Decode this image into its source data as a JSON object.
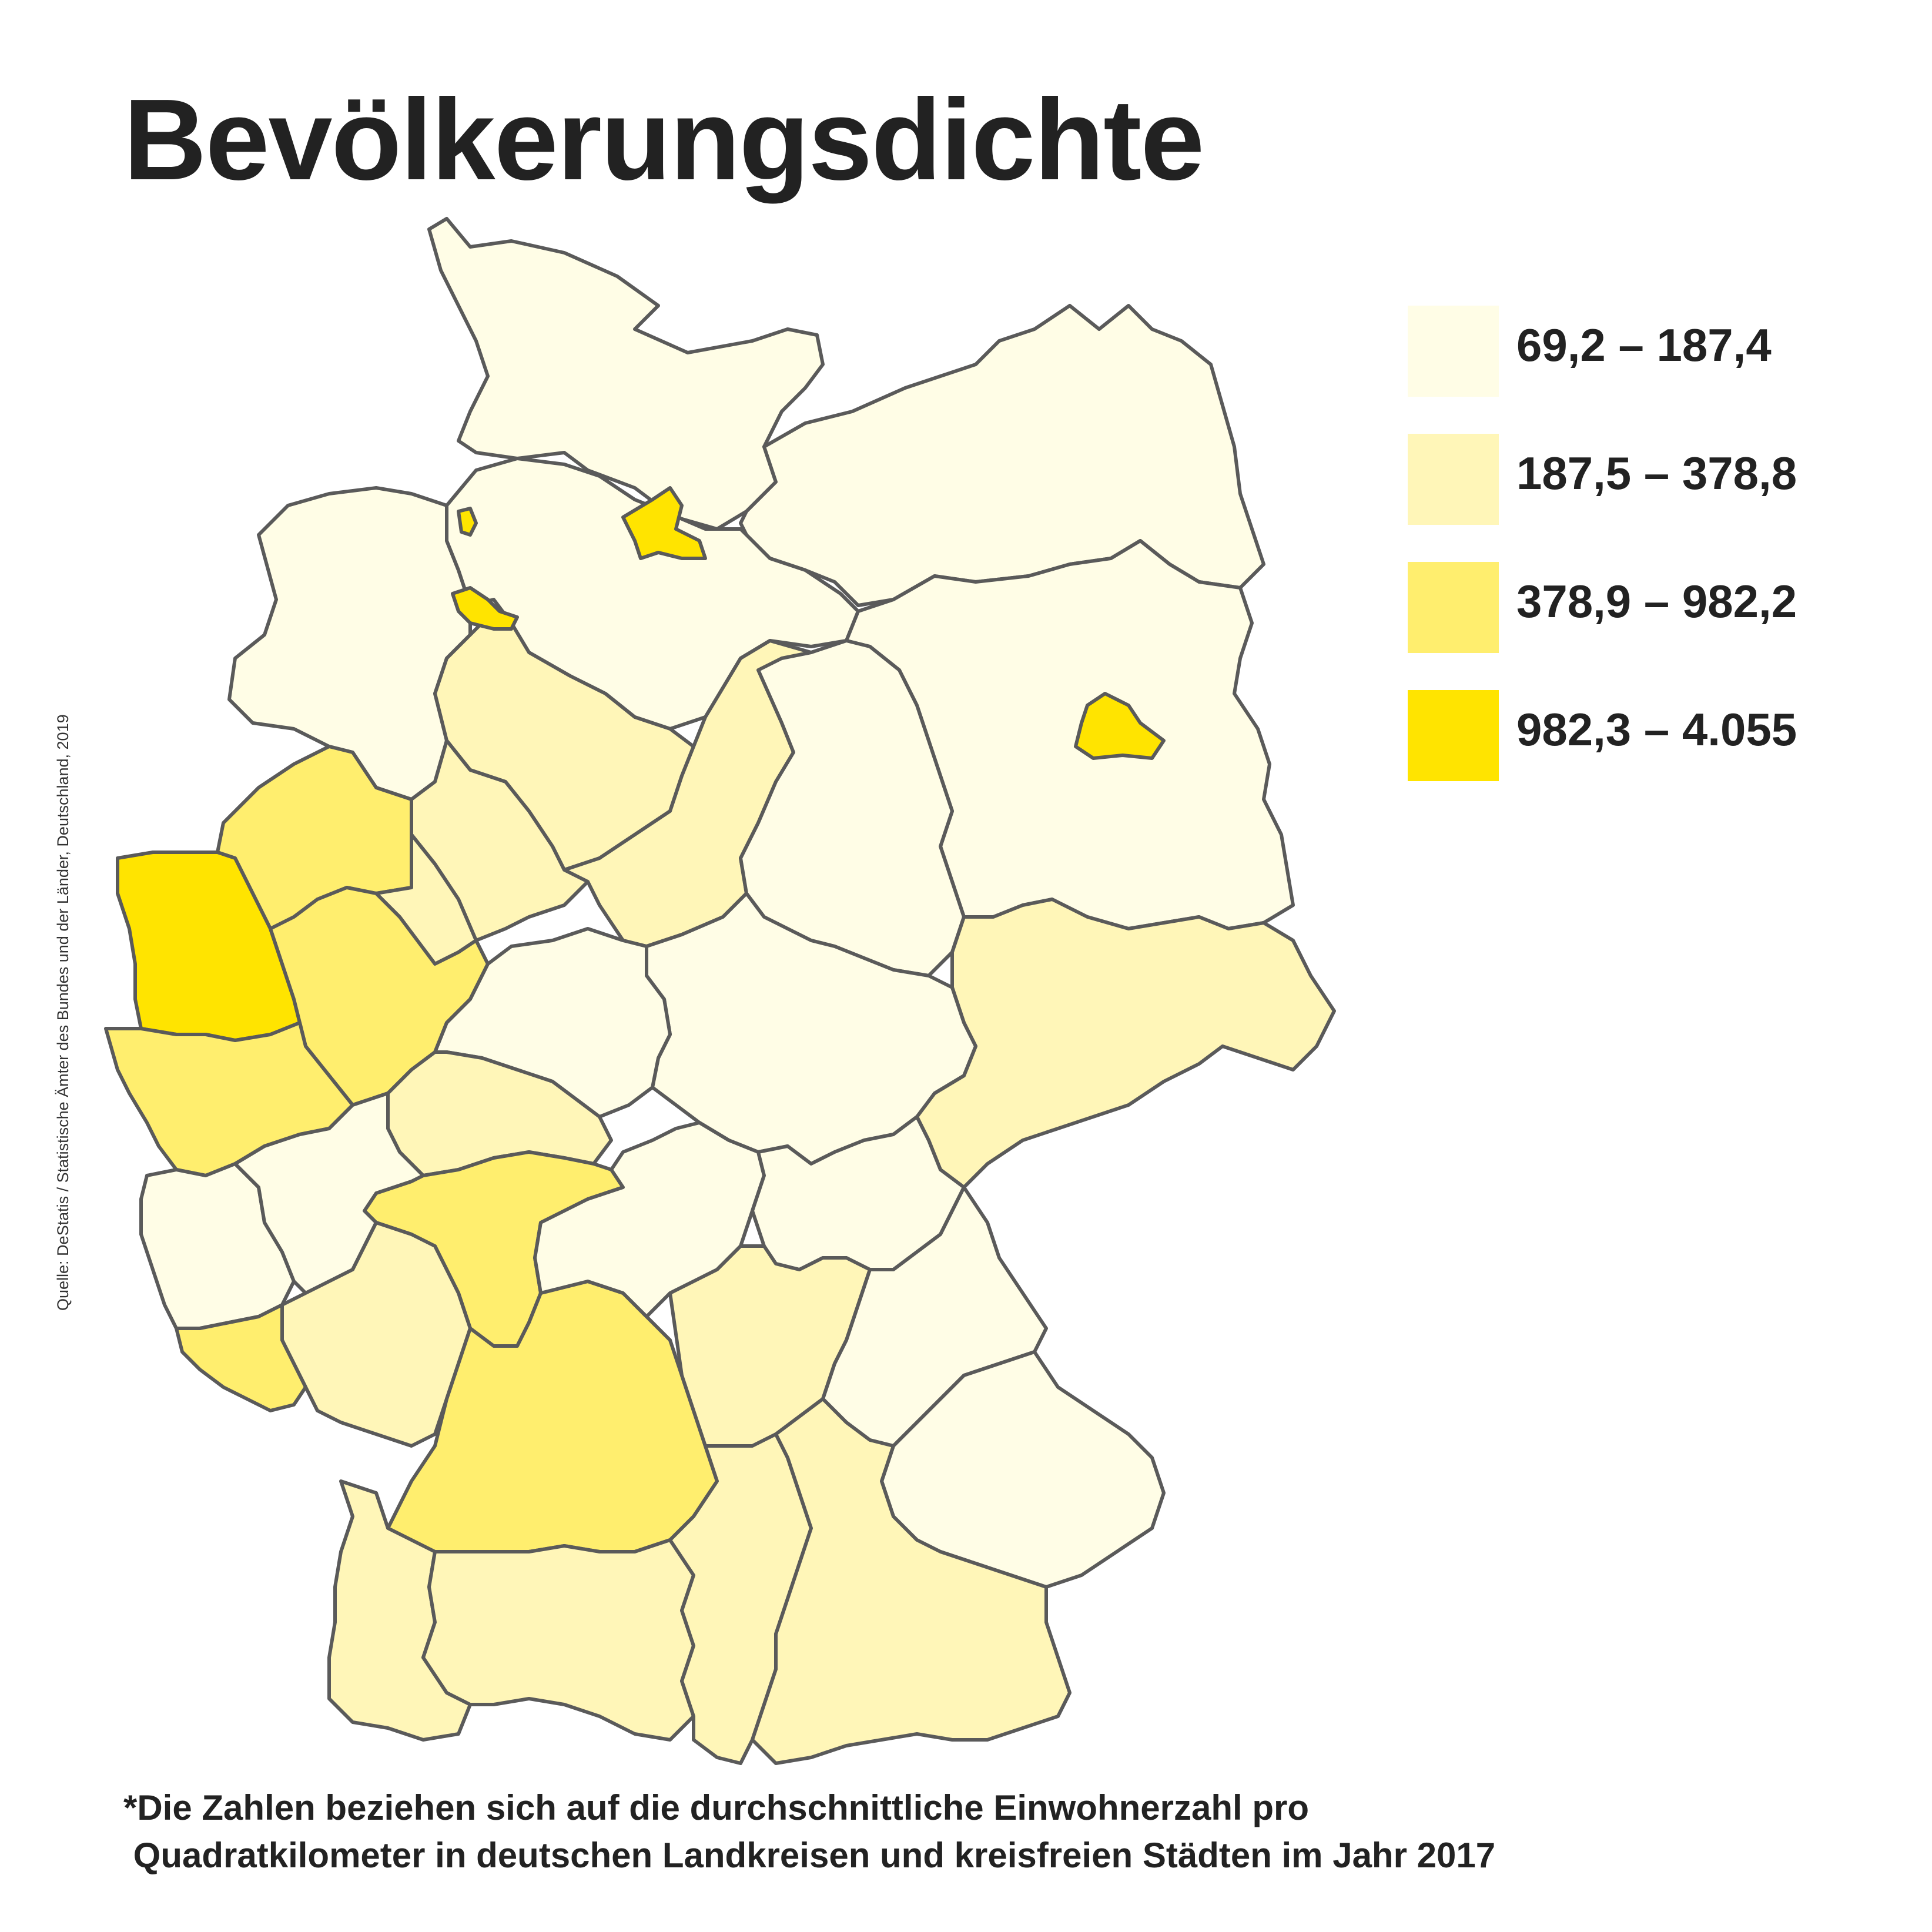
{
  "title": "Bevölkerungsdichte",
  "legend": [
    {
      "label": "69,2 – 187,4",
      "color": "#fffde6"
    },
    {
      "label": "187,5 – 378,8",
      "color": "#fff6b8"
    },
    {
      "label": "378,9 – 982,2",
      "color": "#ffee6e"
    },
    {
      "label": "982,3 – 4.055",
      "color": "#ffe400"
    }
  ],
  "source": "Quelle: DeStatis / Statistische Ämter des Bundes und der Länder, Deutschland, 2019",
  "footnote": {
    "line1": "*Die Zahlen beziehen sich auf die durchschnittliche Einwohnerzahl pro",
    "line2": " Quadratkilometer in deutschen Landkreisen und kreisfreien Städten im Jahr 2017"
  },
  "map_regions": [
    {
      "name": "schleswig-holstein",
      "class": 0
    },
    {
      "name": "mecklenburg-vorpommern",
      "class": 0
    },
    {
      "name": "niedersachsen-west",
      "class": 0
    },
    {
      "name": "niedersachsen-nord",
      "class": 0
    },
    {
      "name": "niedersachsen-mitte",
      "class": 1
    },
    {
      "name": "niedersachsen-sued",
      "class": 1
    },
    {
      "name": "niedersachsen-ost",
      "class": 1
    },
    {
      "name": "hamburg",
      "class": 3
    },
    {
      "name": "bremen",
      "class": 3
    },
    {
      "name": "bremerhaven",
      "class": 3
    },
    {
      "name": "brandenburg",
      "class": 0
    },
    {
      "name": "berlin",
      "class": 3
    },
    {
      "name": "sachsen-anhalt",
      "class": 0
    },
    {
      "name": "sachsen",
      "class": 1
    },
    {
      "name": "thueringen",
      "class": 0
    },
    {
      "name": "nrw-muenster",
      "class": 2
    },
    {
      "name": "nrw-duesseldorf",
      "class": 3
    },
    {
      "name": "nrw-arnsberg",
      "class": 2
    },
    {
      "name": "nrw-koeln",
      "class": 2
    },
    {
      "name": "nrw-detmold",
      "class": 1
    },
    {
      "name": "hessen-nord",
      "class": 0
    },
    {
      "name": "hessen-mitte",
      "class": 1
    },
    {
      "name": "hessen-sued",
      "class": 2
    },
    {
      "name": "rheinland-pfalz-nord",
      "class": 0
    },
    {
      "name": "rheinland-pfalz-west",
      "class": 0
    },
    {
      "name": "rheinland-pfalz-sued",
      "class": 1
    },
    {
      "name": "saarland",
      "class": 2
    },
    {
      "name": "bw-stuttgart",
      "class": 2
    },
    {
      "name": "bw-freiburg",
      "class": 1
    },
    {
      "name": "bw-tuebingen",
      "class": 1
    },
    {
      "name": "bayern-unterfranken",
      "class": 0
    },
    {
      "name": "bayern-oberfranken",
      "class": 0
    },
    {
      "name": "bayern-mittelfranken",
      "class": 1
    },
    {
      "name": "bayern-oberpfalz",
      "class": 0
    },
    {
      "name": "bayern-niederbayern",
      "class": 0
    },
    {
      "name": "bayern-schwaben",
      "class": 1
    },
    {
      "name": "bayern-oberbayern",
      "class": 1
    }
  ]
}
